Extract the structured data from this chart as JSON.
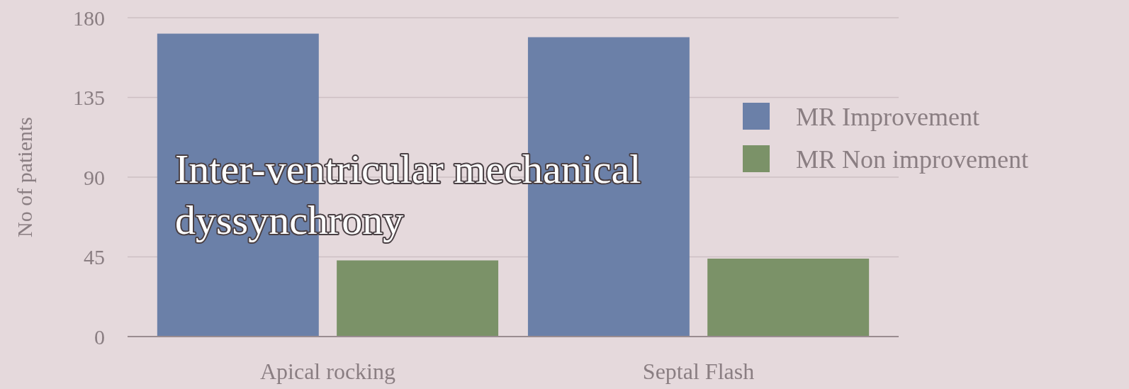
{
  "chart_data": {
    "type": "bar",
    "ylabel": "No of patients",
    "categories": [
      "Apical rocking",
      "Septal Flash"
    ],
    "series": [
      {
        "name": "MR Improvement",
        "color": "#6b80a8",
        "values": [
          171,
          169
        ]
      },
      {
        "name": "MR Non improvement",
        "color": "#7b9268",
        "values": [
          43,
          44
        ]
      }
    ],
    "ylim": [
      0,
      180
    ],
    "yticks": [
      0,
      45,
      90,
      135,
      180
    ],
    "grid": "y",
    "legend": "right",
    "annotations": [
      "Inter-ventricular mechanical dyssynchrony"
    ]
  }
}
